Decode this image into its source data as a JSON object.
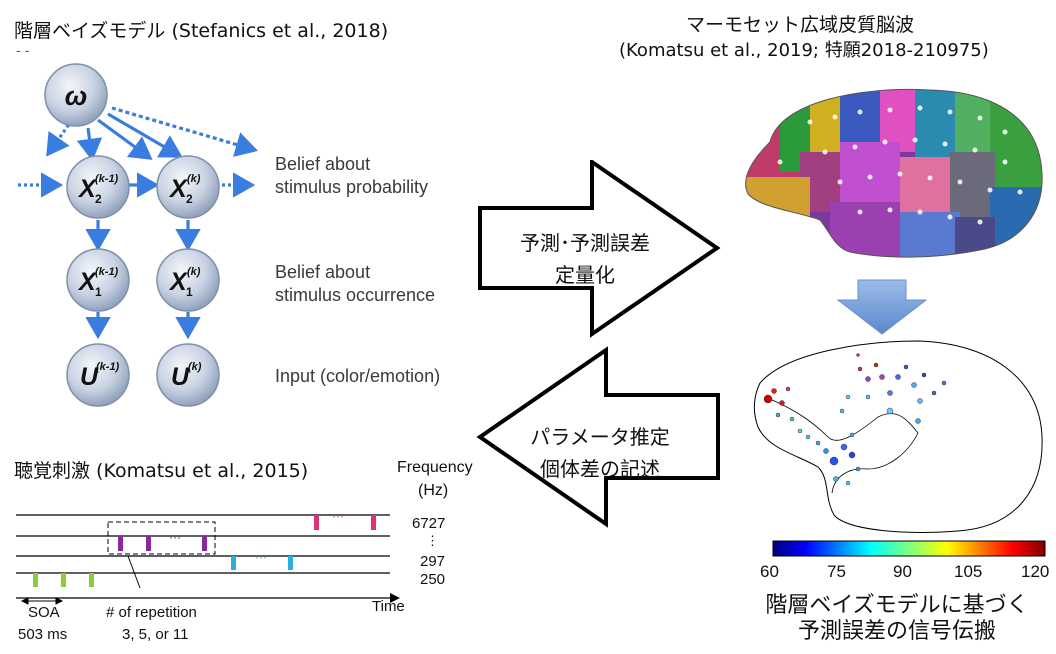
{
  "left": {
    "title": "階層ベイズモデル (Stefanics et al., 2018)",
    "mark": "- -",
    "nodes": {
      "omega": "ω",
      "x2_a": "X",
      "x2_a_sub": "2",
      "x2_a_sup": "(k-1)",
      "x2_b": "X",
      "x2_b_sub": "2",
      "x2_b_sup": "(k)",
      "x1_a": "X",
      "x1_a_sub": "1",
      "x1_a_sup": "(k-1)",
      "x1_b": "X",
      "x1_b_sub": "1",
      "x1_b_sup": "(k)",
      "u_a": "U",
      "u_a_sup": "(k-1)",
      "u_b": "U",
      "u_b_sup": "(k)"
    },
    "labels": {
      "belief_prob_1": "Belief about",
      "belief_prob_2": "stimulus probability",
      "belief_occ_1": "Belief about",
      "belief_occ_2": "stimulus occurrence",
      "input": "Input (color/emotion)"
    }
  },
  "arrows": {
    "right_line1": "予測･予測誤差",
    "right_line2": "定量化",
    "left_line1": "パラメータ推定",
    "left_line2": "個体差の記述"
  },
  "stimulus": {
    "title": "聴覚刺激 (Komatsu et al., 2015)",
    "freq_label_1": "Frequency",
    "freq_label_2": "(Hz)",
    "freq_6727": "6727",
    "freq_dots": "⋮",
    "freq_297": "297",
    "freq_250": "250",
    "dots_magenta": "···",
    "dots_purple": "···",
    "dots_cyan": "···",
    "soa_label": "SOA",
    "soa_value": "503 ms",
    "rep_label": "# of repetition",
    "rep_values": "3, 5, or 11",
    "time_label": "Time",
    "colors": {
      "magenta": "#e0307a",
      "purple": "#8a2a9a",
      "cyan": "#2aaee0",
      "green": "#8ccc3a"
    }
  },
  "right": {
    "title_1": "マーモセット広域皮質脳波",
    "title_2": "(Komatsu et al., 2019; 特願2018-210975)",
    "colorbar_ticks": [
      "60",
      "75",
      "90",
      "105",
      "120"
    ],
    "caption_1": "階層ベイズモデルに基づく",
    "caption_2": "予測誤差の信号伝搬"
  }
}
